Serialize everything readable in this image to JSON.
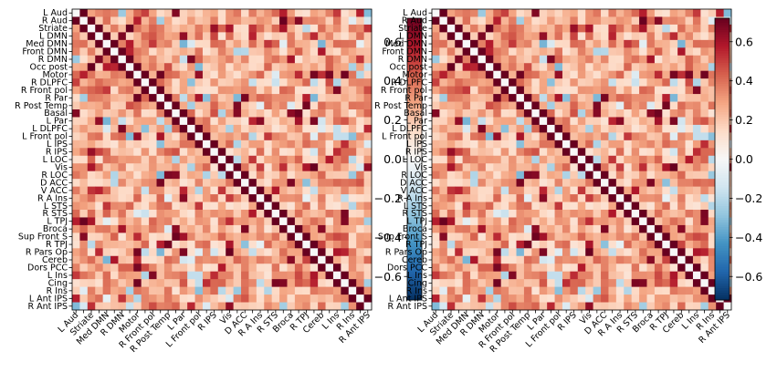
{
  "chart_data": [
    {
      "type": "heatmap",
      "title": "",
      "xlabel": "",
      "ylabel": "",
      "colormap": "RdBu_r",
      "color_range": [
        -0.72,
        0.72
      ],
      "colorbar_ticks": [
        "0.6",
        "0.4",
        "0.2",
        "0.0",
        "−0.2",
        "−0.4",
        "−0.6"
      ],
      "colorbar_tick_values": [
        0.6,
        0.4,
        0.2,
        0.0,
        -0.2,
        -0.4,
        -0.6
      ],
      "regions": [
        "L Aud",
        "R Aud",
        "Striate",
        "L DMN",
        "Med DMN",
        "Front DMN",
        "R DMN",
        "Occ post",
        "Motor",
        "R DLPFC",
        "R Front pol",
        "R Par",
        "R Post Temp",
        "Basal",
        "L Par",
        "L DLPFC",
        "L Front pol",
        "L IPS",
        "R IPS",
        "L LOC",
        "Vis",
        "R LOC",
        "D ACC",
        "V ACC",
        "R A Ins",
        "L STS",
        "R STS",
        "L TPJ",
        "Broca",
        "Sup Front S",
        "R TPJ",
        "R Pars Op",
        "Cereb",
        "Dors PCC",
        "L Ins",
        "Cing",
        "R Ins",
        "L Ant IPS",
        "R Ant IPS"
      ],
      "x_tick_labels": [
        "L Aud",
        "Striate",
        "Med DMN",
        "R DMN",
        "Motor",
        "R Front pol",
        "R Post Temp",
        "L Par",
        "L Front pol",
        "R IPS",
        "Vis",
        "D ACC",
        "R A Ins",
        "R STS",
        "Broca",
        "R TPJ",
        "Cereb",
        "L Ins",
        "R Ins",
        "R Ant IPS"
      ],
      "grid": false,
      "legend": "none"
    },
    {
      "type": "heatmap",
      "title": "",
      "xlabel": "",
      "ylabel": "",
      "colormap": "RdBu_r",
      "color_range": [
        -0.72,
        0.72
      ],
      "colorbar_ticks": [
        "0.6",
        "0.4",
        "0.2",
        "0.0",
        "−0.2",
        "−0.4",
        "−0.6"
      ],
      "colorbar_tick_values": [
        0.6,
        0.4,
        0.2,
        0.0,
        -0.2,
        -0.4,
        -0.6
      ],
      "regions": [
        "L Aud",
        "R Aud",
        "Striate",
        "L DMN",
        "Med DMN",
        "Front DMN",
        "R DMN",
        "Occ post",
        "Motor",
        "R DLPFC",
        "R Front pol",
        "R Par",
        "R Post Temp",
        "Basal",
        "L Par",
        "L DLPFC",
        "L Front pol",
        "L IPS",
        "R IPS",
        "L LOC",
        "Vis",
        "R LOC",
        "D ACC",
        "V ACC",
        "R A Ins",
        "L STS",
        "R STS",
        "L TPJ",
        "Broca",
        "Sup Front S",
        "R TPJ",
        "R Pars Op",
        "Cereb",
        "Dors PCC",
        "L Ins",
        "Cing",
        "R Ins",
        "L Ant IPS",
        "R Ant IPS"
      ],
      "x_tick_labels": [
        "L Aud",
        "Striate",
        "Med DMN",
        "R DMN",
        "Motor",
        "R Front pol",
        "R Post Temp",
        "L Par",
        "L Front pol",
        "R IPS",
        "Vis",
        "D ACC",
        "R A Ins",
        "R STS",
        "Broca",
        "R TPJ",
        "Cereb",
        "L Ins",
        "R Ins",
        "R Ant IPS"
      ],
      "grid": false,
      "legend": "none"
    }
  ]
}
